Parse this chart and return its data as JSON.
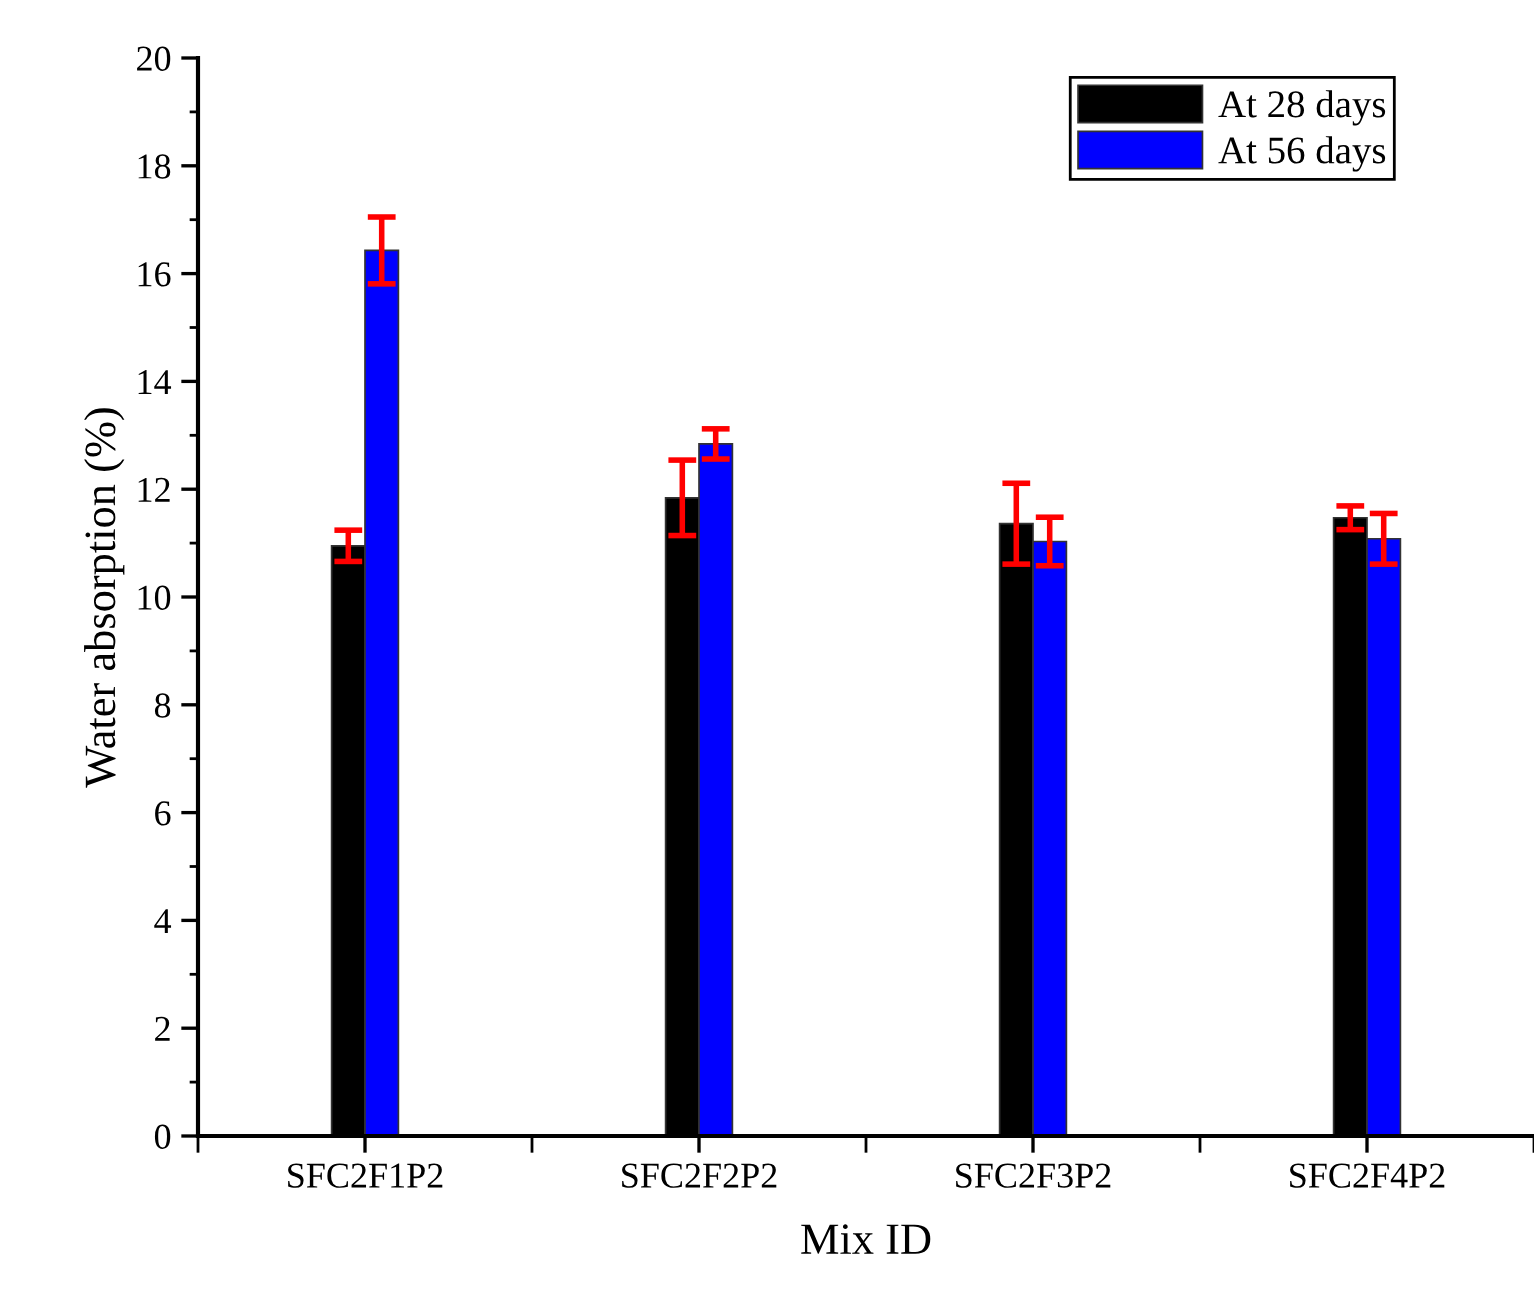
{
  "chart_data": {
    "type": "bar",
    "xlabel": "Mix ID",
    "ylabel": "Water absorption (%)",
    "categories": [
      "SFC2F1P2",
      "SFC2F2P2",
      "SFC2F3P2",
      "SFC2F4P2"
    ],
    "series": [
      {
        "name": "At 28 days",
        "color": "#000000",
        "values": [
          10.95,
          11.84,
          11.36,
          11.47
        ],
        "errors": [
          0.29,
          0.7,
          0.75,
          0.22
        ]
      },
      {
        "name": "At 56 days",
        "color": "#0000ff",
        "values": [
          16.43,
          12.84,
          11.03,
          11.08
        ],
        "errors": [
          0.62,
          0.28,
          0.45,
          0.47
        ]
      }
    ],
    "ylim": [
      0,
      20
    ],
    "yticks": [
      0,
      2,
      4,
      6,
      8,
      10,
      12,
      14,
      16,
      18,
      20
    ],
    "grid": false,
    "legend": "top right"
  }
}
